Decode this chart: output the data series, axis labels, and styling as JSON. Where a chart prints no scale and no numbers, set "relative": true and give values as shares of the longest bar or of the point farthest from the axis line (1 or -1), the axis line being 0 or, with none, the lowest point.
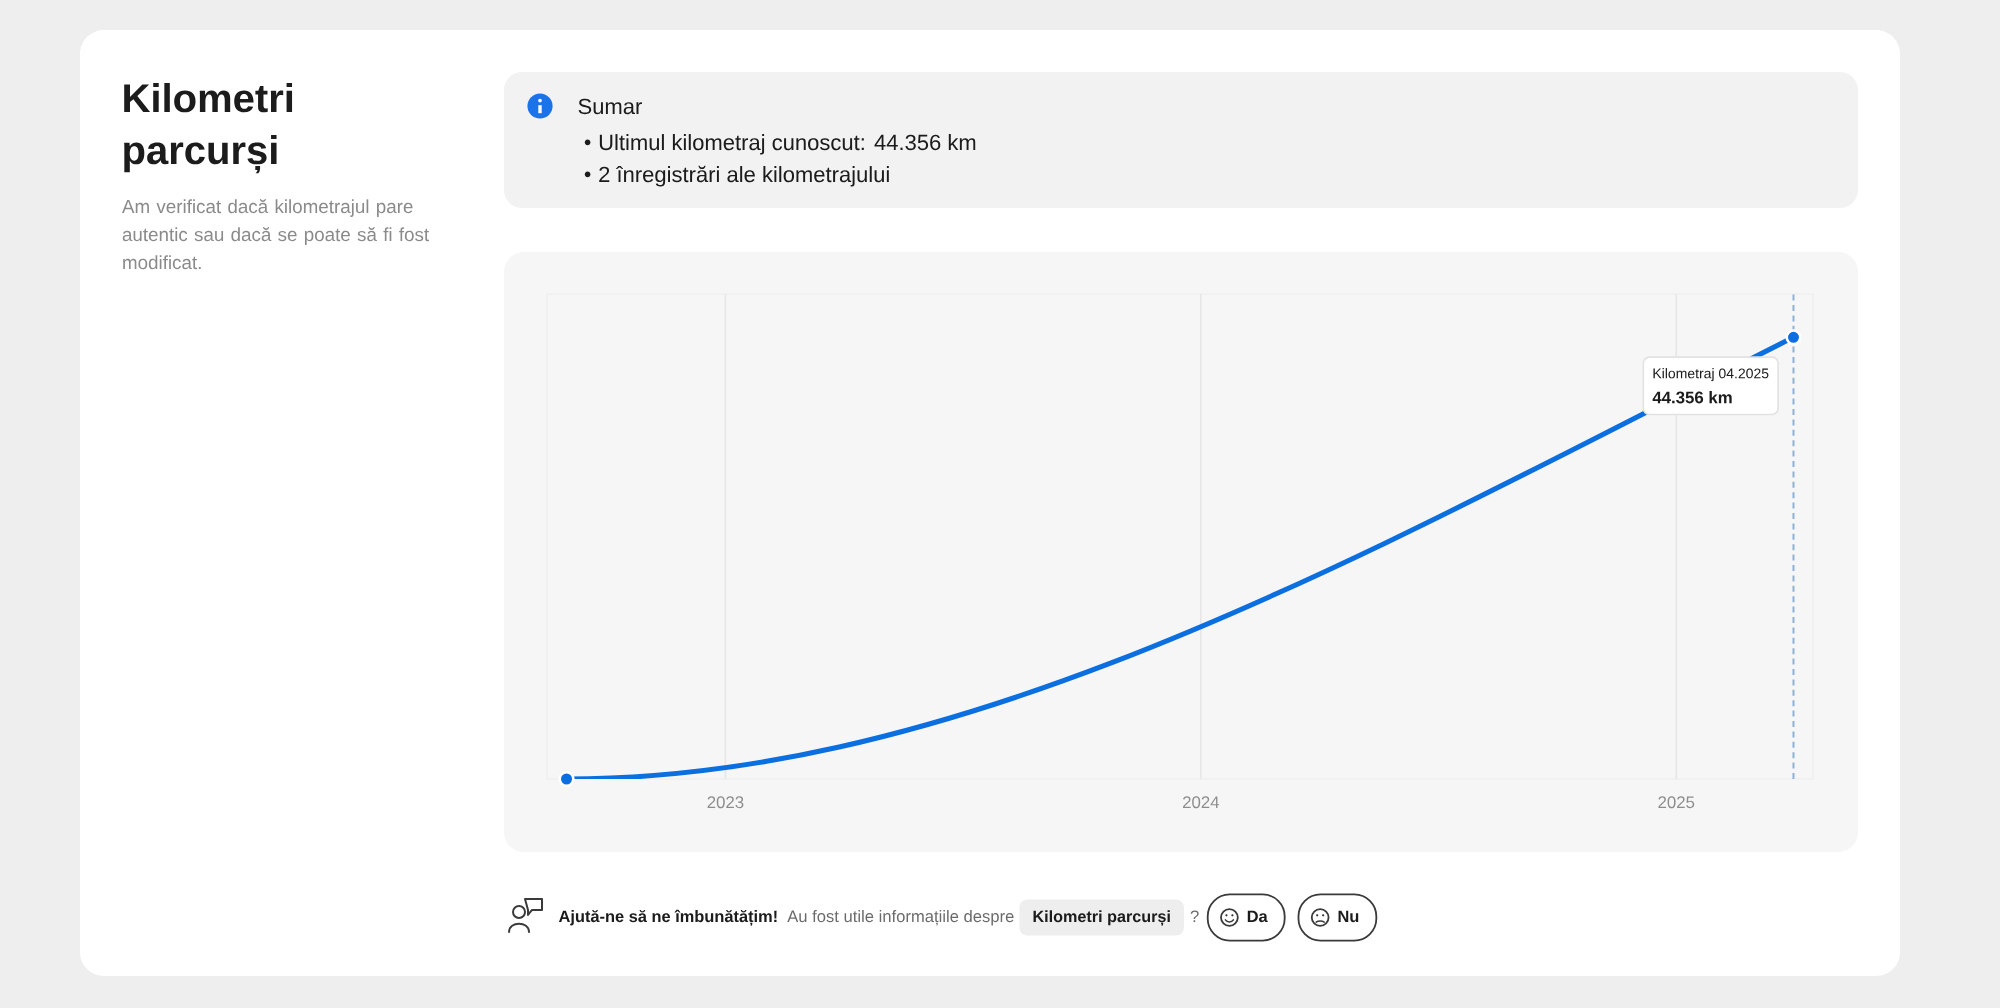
{
  "chart_data": {
    "type": "line",
    "title": "Kilometri parcurși",
    "subtitle": "Am verificat dacă kilometrajul pare autentic sau dacă se poate să fi fost modificat.",
    "annotations": [
      "Sumar",
      "Ultimul kilometraj cunoscut: 44.356 km",
      "2 înregistrări ale kilometrajului",
      {
        "text": "Kilometraj 04.2025",
        "x": "2025-04",
        "y": 1
      },
      "44.356 km",
      "Ajută-ne să ne îmbunătățim!",
      "Au fost utile informațiile despre",
      "Kilometri parcurși",
      "?",
      "Da",
      "Nu"
    ],
    "x": [
      "2022-09",
      "2025-04"
    ],
    "values": [
      0,
      1
    ],
    "color": "#0b6fe0",
    "relative": true,
    "xlim": [
      "2022-08-17",
      "2025-04-16"
    ],
    "xticks": [
      "2023",
      "2024",
      "2025"
    ],
    "grid": "x",
    "marker": "circle",
    "ref_lines": [
      {
        "axis": "x",
        "value": "2025-04",
        "color": "#8fb0d8",
        "line_style": "dashed"
      }
    ]
  }
}
